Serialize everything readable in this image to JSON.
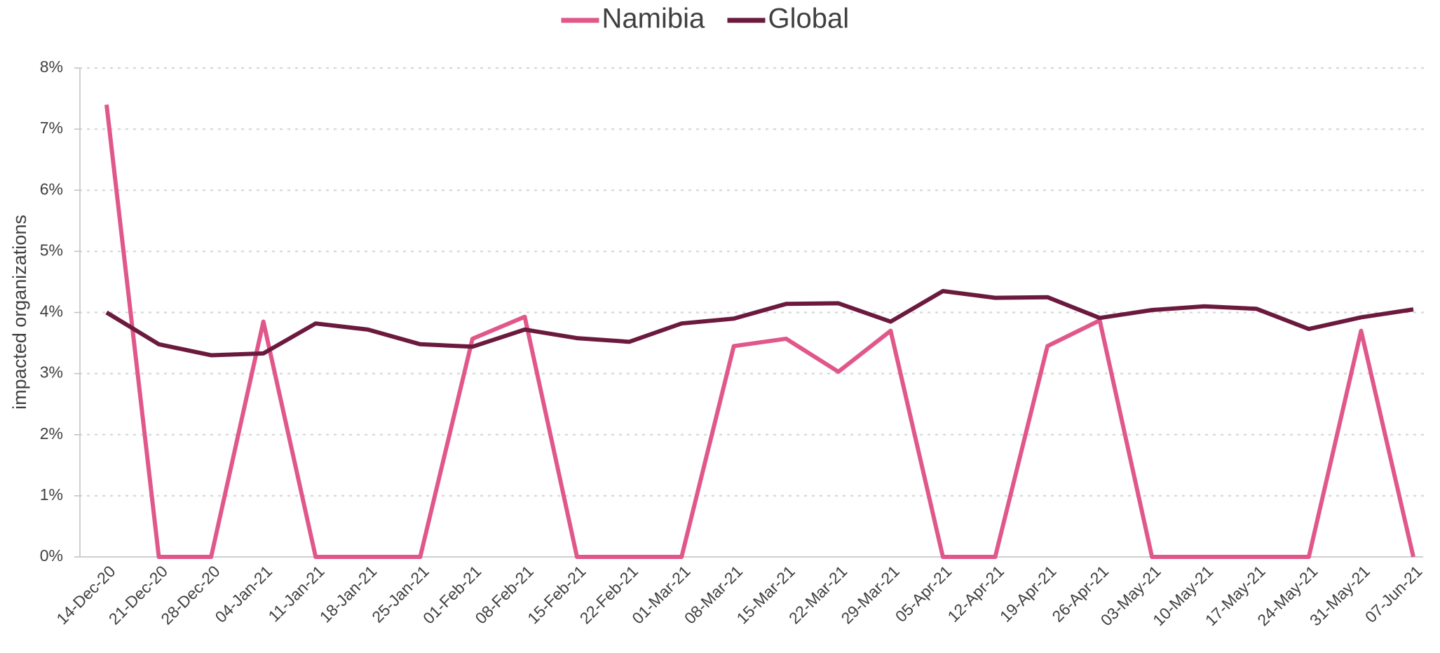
{
  "chart_data": {
    "type": "line",
    "ylabel": "impacted organizations",
    "categories": [
      "14-Dec-20",
      "21-Dec-20",
      "28-Dec-20",
      "04-Jan-21",
      "11-Jan-21",
      "18-Jan-21",
      "25-Jan-21",
      "01-Feb-21",
      "08-Feb-21",
      "15-Feb-21",
      "22-Feb-21",
      "01-Mar-21",
      "08-Mar-21",
      "15-Mar-21",
      "22-Mar-21",
      "29-Mar-21",
      "05-Apr-21",
      "12-Apr-21",
      "19-Apr-21",
      "26-Apr-21",
      "03-May-21",
      "10-May-21",
      "17-May-21",
      "24-May-21",
      "31-May-21",
      "07-Jun-21"
    ],
    "series": [
      {
        "name": "Namibia",
        "color": "#e0578a",
        "values": [
          7.4,
          0,
          0,
          3.85,
          0,
          0,
          0,
          3.57,
          3.93,
          0,
          0,
          0,
          3.45,
          3.57,
          3.03,
          3.7,
          0,
          0,
          3.45,
          3.87,
          0,
          0,
          0,
          0,
          3.7,
          0
        ]
      },
      {
        "name": "Global",
        "color": "#6b1a3e",
        "values": [
          4.0,
          3.48,
          3.3,
          3.33,
          3.82,
          3.72,
          3.48,
          3.44,
          3.72,
          3.58,
          3.52,
          3.82,
          3.9,
          4.14,
          4.15,
          3.85,
          4.35,
          4.24,
          4.25,
          3.91,
          4.04,
          4.1,
          4.06,
          3.73,
          3.92,
          4.05
        ]
      }
    ],
    "ylim": [
      0,
      8
    ],
    "yticks": [
      {
        "value": 0,
        "label": "0%"
      },
      {
        "value": 1,
        "label": "1%"
      },
      {
        "value": 2,
        "label": "2%"
      },
      {
        "value": 3,
        "label": "3%"
      },
      {
        "value": 4,
        "label": "4%"
      },
      {
        "value": 5,
        "label": "5%"
      },
      {
        "value": 6,
        "label": "6%"
      },
      {
        "value": 7,
        "label": "7%"
      },
      {
        "value": 8,
        "label": "8%"
      }
    ],
    "grid": true,
    "legend": "top"
  }
}
